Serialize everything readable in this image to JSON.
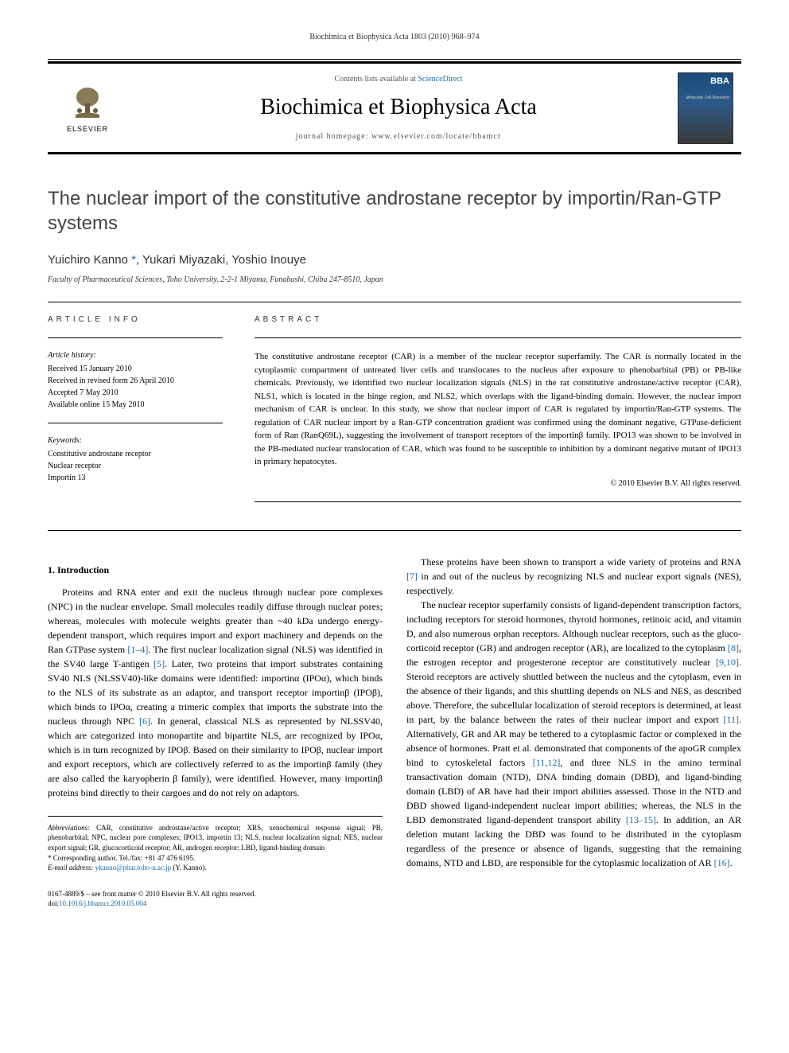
{
  "header": {
    "running_head": "Biochimica et Biophysica Acta 1803 (2010) 968–974"
  },
  "masthead": {
    "contents_prefix": "Contents lists available at ",
    "contents_link": "ScienceDirect",
    "journal_name": "Biochimica et Biophysica Acta",
    "homepage_prefix": "journal homepage: ",
    "homepage_url": "www.elsevier.com/locate/bbamcr",
    "publisher_logo_text": "ELSEVIER",
    "cover_label": "BBA",
    "cover_sublabel": "Molecular Cell Research"
  },
  "title": "The nuclear import of the constitutive androstane receptor by importin/Ran-GTP systems",
  "authors_html": "Yuichiro Kanno *, Yukari Miyazaki, Yoshio Inouye",
  "affiliation": "Faculty of Pharmaceutical Sciences, Toho University, 2-2-1 Miyama, Funabashi, Chiba 247-8510, Japan",
  "article_info": {
    "heading": "ARTICLE INFO",
    "history_label": "Article history:",
    "history": "Received 15 January 2010\nReceived in revised form 26 April 2010\nAccepted 7 May 2010\nAvailable online 15 May 2010",
    "keywords_label": "Keywords:",
    "keywords": "Constitutive androstane receptor\nNuclear receptor\nImportin 13"
  },
  "abstract": {
    "heading": "ABSTRACT",
    "text": "The constitutive androstane receptor (CAR) is a member of the nuclear receptor superfamily. The CAR is normally located in the cytoplasmic compartment of untreated liver cells and translocates to the nucleus after exposure to phenobarbital (PB) or PB-like chemicals. Previously, we identified two nuclear localization signals (NLS) in the rat constitutive androstane/active receptor (CAR), NLS1, which is located in the hinge region, and NLS2, which overlaps with the ligand-binding domain. However, the nuclear import mechanism of CAR is unclear. In this study, we show that nuclear import of CAR is regulated by importin/Ran-GTP systems. The regulation of CAR nuclear import by a Ran-GTP concentration gradient was confirmed using the dominant negative, GTPase-deficient form of Ran (RanQ69L), suggesting the involvement of transport receptors of the importinβ family. IPO13 was shown to be involved in the PB-mediated nuclear translocation of CAR, which was found to be susceptible to inhibition by a dominant negative mutant of IPO13 in primary hepatocytes.",
    "copyright": "© 2010 Elsevier B.V. All rights reserved."
  },
  "body": {
    "intro_heading": "1. Introduction",
    "p1": "Proteins and RNA enter and exit the nucleus through nuclear pore complexes (NPC) in the nuclear envelope. Small molecules readily diffuse through nuclear pores; whereas, molecules with molecule weights greater than ~40 kDa undergo energy-dependent transport, which requires import and export machinery and depends on the Ran GTPase system [1–4]. The first nuclear localization signal (NLS) was identified in the SV40 large T-antigen [5]. Later, two proteins that import substrates containing SV40 NLS (NLSSV40)-like domains were identified: importinα (IPOα), which binds to the NLS of its substrate as an adaptor, and transport receptor importinβ (IPOβ), which binds to IPOα, creating a trimeric complex that imports the substrate into the nucleus through NPC [6]. In general, classical NLS as represented by NLSSV40, which are categorized into monopartite and bipartite NLS, are recognized by IPOα, which is in turn recognized by IPOβ. Based on their similarity to IPOβ, nuclear import and export receptors, which are collectively referred to as the importinβ family (they are also called the karyopherin β family), were identified. However, many importinβ proteins bind directly to their cargoes and do not rely on adaptors.",
    "p2": "These proteins have been shown to transport a wide variety of proteins and RNA [7] in and out of the nucleus by recognizing NLS and nuclear export signals (NES), respectively.",
    "p3": "The nuclear receptor superfamily consists of ligand-dependent transcription factors, including receptors for steroid hormones, thyroid hormones, retinoic acid, and vitamin D, and also numerous orphan receptors. Although nuclear receptors, such as the gluco-corticoid receptor (GR) and androgen receptor (AR), are localized to the cytoplasm [8], the estrogen receptor and progesterone receptor are constitutively nuclear [9,10]. Steroid receptors are actively shuttled between the nucleus and the cytoplasm, even in the absence of their ligands, and this shuttling depends on NLS and NES, as described above. Therefore, the subcellular localization of steroid receptors is determined, at least in part, by the balance between the rates of their nuclear import and export [11]. Alternatively, GR and AR may be tethered to a cytoplasmic factor or complexed in the absence of hormones. Pratt et al. demonstrated that components of the apoGR complex bind to cytoskeletal factors [11,12], and three NLS in the amino terminal transactivation domain (NTD), DNA binding domain (DBD), and ligand-binding domain (LBD) of AR have had their import abilities assessed. Those in the NTD and DBD showed ligand-independent nuclear import abilities; whereas, the NLS in the LBD demonstrated ligand-dependent transport ability [13–15]. In addition, an AR deletion mutant lacking the DBD was found to be distributed in the cytoplasm regardless of the presence or absence of ligands, suggesting that the remaining domains, NTD and LBD, are responsible for the cytoplasmic localization of AR [16]."
  },
  "footnotes": {
    "abbrev_label": "Abbreviations:",
    "abbrev": " CAR, constitutive androstane/active receptor; XRS, xenochemical response signal; PB, phenobarbital; NPC, nuclear pore complexes; IPO13, importin 13; NLS, nuclear localization signal; NES, nuclear export signal; GR, glucocorticoid receptor; AR, androgen receptor; LBD, ligand-binding domain",
    "corr": "* Corresponding author. Tel./fax: +81 47 476 6195.",
    "email_label": "E-mail address: ",
    "email": "ykanno@phar.toho-u.ac.jp",
    "email_suffix": " (Y. Kanno)."
  },
  "footer": {
    "line1": "0167-4889/$ – see front matter © 2010 Elsevier B.V. All rights reserved.",
    "doi_prefix": "doi:",
    "doi": "10.1016/j.bbamcr.2010.05.004"
  },
  "colors": {
    "link": "#1a6ba8",
    "text": "#000000",
    "title_gray": "#444444"
  }
}
